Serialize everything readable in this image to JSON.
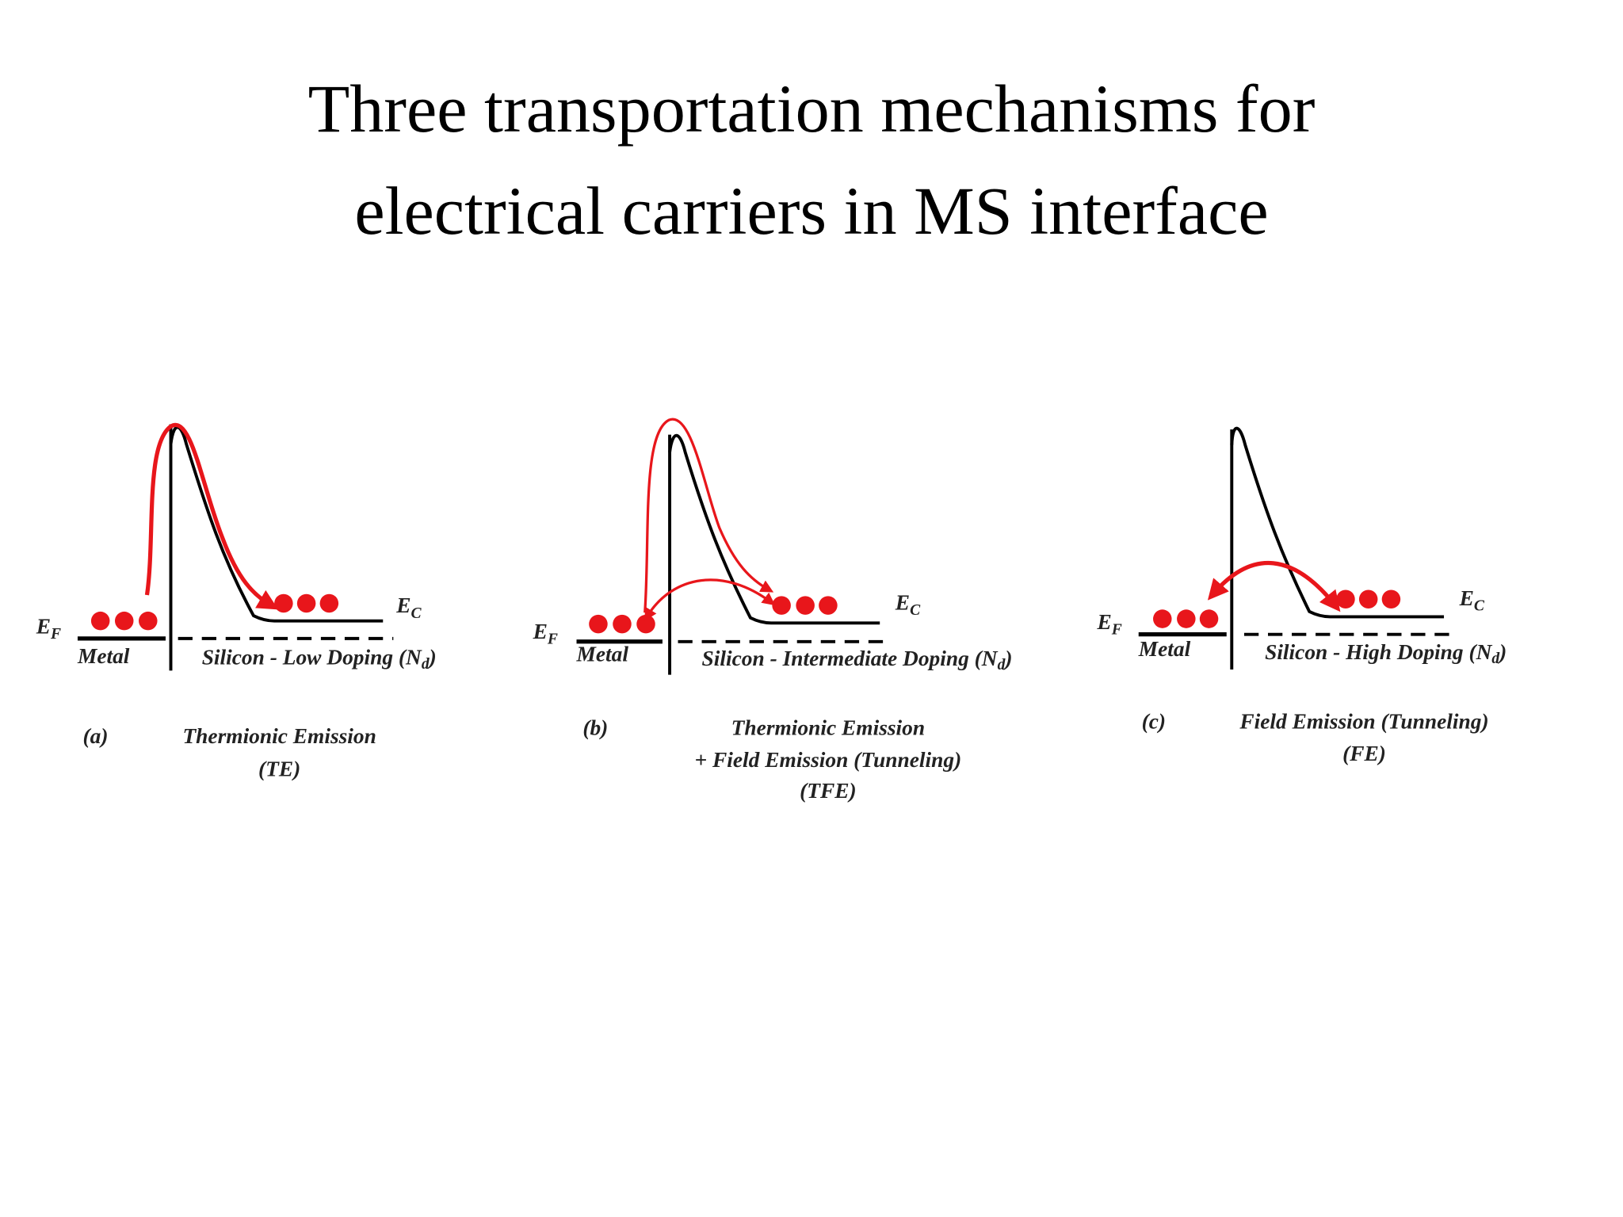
{
  "title": [
    "Three transportation mechanisms for",
    "electrical carriers in MS interface"
  ],
  "panels": [
    {
      "ef": "E",
      "ef_sub": "F",
      "ec": "E",
      "ec_sub": "C",
      "metal": "Metal",
      "silicon": [
        "Silicon - Low Doping (N",
        "d",
        ")"
      ],
      "letter": "(a)",
      "caption": [
        "Thermionic Emission",
        "(TE)"
      ]
    },
    {
      "ef": "E",
      "ef_sub": "F",
      "ec": "E",
      "ec_sub": "C",
      "metal": "Metal",
      "silicon": [
        "Silicon - Intermediate Doping (N",
        "d",
        ")"
      ],
      "letter": "(b)",
      "caption": [
        "Thermionic Emission",
        "+ Field Emission (Tunneling)",
        "(TFE)"
      ]
    },
    {
      "ef": "E",
      "ef_sub": "F",
      "ec": "E",
      "ec_sub": "C",
      "metal": "Metal",
      "silicon": [
        "Silicon - High Doping (N",
        "d",
        ")"
      ],
      "letter": "(c)",
      "caption": [
        "Field Emission (Tunneling)",
        "(FE)"
      ]
    }
  ]
}
